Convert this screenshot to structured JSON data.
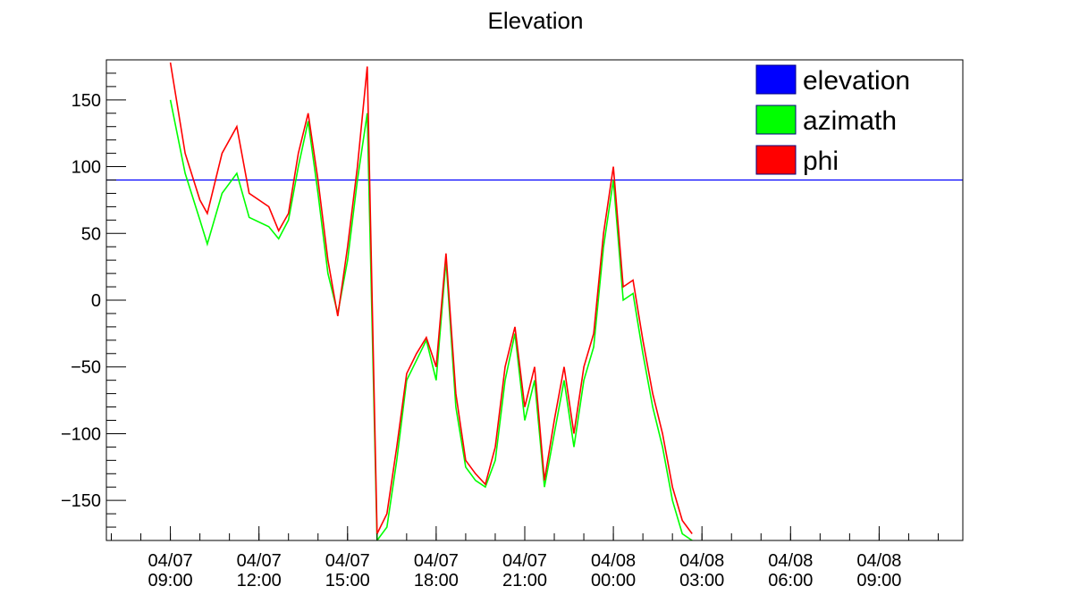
{
  "chart_data": {
    "type": "line",
    "title": "Elevation",
    "xlabel": "",
    "ylabel": "",
    "ylim": [
      -180,
      180
    ],
    "xlim": [
      "2023-04-07 06:50",
      "2023-04-08 11:50"
    ],
    "grid": false,
    "legend_position": "top-right",
    "y_ticks": [
      "150",
      "100",
      "50",
      "0",
      "−50",
      "−100",
      "−150"
    ],
    "y_tick_values": [
      150,
      100,
      50,
      0,
      -50,
      -100,
      -150
    ],
    "x_ticks": [
      {
        "date": "04/07",
        "time": "09:00",
        "value": "2023-04-07 09:00"
      },
      {
        "date": "04/07",
        "time": "12:00",
        "value": "2023-04-07 12:00"
      },
      {
        "date": "04/07",
        "time": "15:00",
        "value": "2023-04-07 15:00"
      },
      {
        "date": "04/07",
        "time": "18:00",
        "value": "2023-04-07 18:00"
      },
      {
        "date": "04/07",
        "time": "21:00",
        "value": "2023-04-07 21:00"
      },
      {
        "date": "04/08",
        "time": "00:00",
        "value": "2023-04-08 00:00"
      },
      {
        "date": "04/08",
        "time": "03:00",
        "value": "2023-04-08 03:00"
      },
      {
        "date": "04/08",
        "time": "06:00",
        "value": "2023-04-08 06:00"
      },
      {
        "date": "04/08",
        "time": "09:00",
        "value": "2023-04-08 09:00"
      }
    ],
    "series": [
      {
        "name": "elevation",
        "color": "#0000ff",
        "points": [
          [
            "2023-04-07 06:50",
            90
          ],
          [
            "2023-04-08 11:50",
            90
          ]
        ]
      },
      {
        "name": "azimath",
        "color": "#00ff00",
        "points": [
          [
            "2023-04-07 09:00",
            150
          ],
          [
            "2023-04-07 09:30",
            95
          ],
          [
            "2023-04-07 10:00",
            60
          ],
          [
            "2023-04-07 10:15",
            42
          ],
          [
            "2023-04-07 10:45",
            80
          ],
          [
            "2023-04-07 11:15",
            95
          ],
          [
            "2023-04-07 11:40",
            62
          ],
          [
            "2023-04-07 12:20",
            55
          ],
          [
            "2023-04-07 12:40",
            46
          ],
          [
            "2023-04-07 13:00",
            60
          ],
          [
            "2023-04-07 13:20",
            100
          ],
          [
            "2023-04-07 13:40",
            134
          ],
          [
            "2023-04-07 14:00",
            80
          ],
          [
            "2023-04-07 14:20",
            20
          ],
          [
            "2023-04-07 14:40",
            -10
          ],
          [
            "2023-04-07 15:00",
            30
          ],
          [
            "2023-04-07 15:20",
            90
          ],
          [
            "2023-04-07 15:40",
            140
          ],
          [
            "2023-04-07 16:00",
            -180
          ],
          [
            "2023-04-07 16:20",
            -170
          ],
          [
            "2023-04-07 16:40",
            -120
          ],
          [
            "2023-04-07 17:00",
            -60
          ],
          [
            "2023-04-07 17:20",
            -45
          ],
          [
            "2023-04-07 17:40",
            -30
          ],
          [
            "2023-04-07 18:00",
            -60
          ],
          [
            "2023-04-07 18:20",
            30
          ],
          [
            "2023-04-07 18:40",
            -80
          ],
          [
            "2023-04-07 19:00",
            -125
          ],
          [
            "2023-04-07 19:20",
            -135
          ],
          [
            "2023-04-07 19:40",
            -140
          ],
          [
            "2023-04-07 20:00",
            -120
          ],
          [
            "2023-04-07 20:20",
            -60
          ],
          [
            "2023-04-07 20:40",
            -25
          ],
          [
            "2023-04-07 21:00",
            -90
          ],
          [
            "2023-04-07 21:20",
            -60
          ],
          [
            "2023-04-07 21:40",
            -140
          ],
          [
            "2023-04-07 22:00",
            -100
          ],
          [
            "2023-04-07 22:20",
            -60
          ],
          [
            "2023-04-07 22:40",
            -110
          ],
          [
            "2023-04-07 23:00",
            -60
          ],
          [
            "2023-04-07 23:20",
            -35
          ],
          [
            "2023-04-07 23:40",
            40
          ],
          [
            "2023-04-08 00:00",
            90
          ],
          [
            "2023-04-08 00:20",
            0
          ],
          [
            "2023-04-08 00:40",
            5
          ],
          [
            "2023-04-08 01:00",
            -40
          ],
          [
            "2023-04-08 01:20",
            -80
          ],
          [
            "2023-04-08 01:40",
            -110
          ],
          [
            "2023-04-08 02:00",
            -150
          ],
          [
            "2023-04-08 02:20",
            -175
          ],
          [
            "2023-04-08 02:40",
            -180
          ]
        ]
      },
      {
        "name": "phi",
        "color": "#ff0000",
        "points": [
          [
            "2023-04-07 09:00",
            178
          ],
          [
            "2023-04-07 09:30",
            110
          ],
          [
            "2023-04-07 10:00",
            75
          ],
          [
            "2023-04-07 10:15",
            65
          ],
          [
            "2023-04-07 10:45",
            110
          ],
          [
            "2023-04-07 11:15",
            130
          ],
          [
            "2023-04-07 11:40",
            80
          ],
          [
            "2023-04-07 12:20",
            70
          ],
          [
            "2023-04-07 12:40",
            52
          ],
          [
            "2023-04-07 13:00",
            65
          ],
          [
            "2023-04-07 13:20",
            110
          ],
          [
            "2023-04-07 13:40",
            140
          ],
          [
            "2023-04-07 14:00",
            90
          ],
          [
            "2023-04-07 14:20",
            30
          ],
          [
            "2023-04-07 14:40",
            -12
          ],
          [
            "2023-04-07 15:00",
            40
          ],
          [
            "2023-04-07 15:20",
            100
          ],
          [
            "2023-04-07 15:40",
            175
          ],
          [
            "2023-04-07 16:00",
            -175
          ],
          [
            "2023-04-07 16:20",
            -160
          ],
          [
            "2023-04-07 16:40",
            -110
          ],
          [
            "2023-04-07 17:00",
            -55
          ],
          [
            "2023-04-07 17:20",
            -40
          ],
          [
            "2023-04-07 17:40",
            -28
          ],
          [
            "2023-04-07 18:00",
            -50
          ],
          [
            "2023-04-07 18:20",
            35
          ],
          [
            "2023-04-07 18:40",
            -70
          ],
          [
            "2023-04-07 19:00",
            -120
          ],
          [
            "2023-04-07 19:20",
            -130
          ],
          [
            "2023-04-07 19:40",
            -138
          ],
          [
            "2023-04-07 20:00",
            -110
          ],
          [
            "2023-04-07 20:20",
            -50
          ],
          [
            "2023-04-07 20:40",
            -20
          ],
          [
            "2023-04-07 21:00",
            -80
          ],
          [
            "2023-04-07 21:20",
            -50
          ],
          [
            "2023-04-07 21:40",
            -135
          ],
          [
            "2023-04-07 22:00",
            -90
          ],
          [
            "2023-04-07 22:20",
            -50
          ],
          [
            "2023-04-07 22:40",
            -100
          ],
          [
            "2023-04-07 23:00",
            -50
          ],
          [
            "2023-04-07 23:20",
            -25
          ],
          [
            "2023-04-07 23:40",
            50
          ],
          [
            "2023-04-08 00:00",
            100
          ],
          [
            "2023-04-08 00:20",
            10
          ],
          [
            "2023-04-08 00:40",
            15
          ],
          [
            "2023-04-08 01:00",
            -30
          ],
          [
            "2023-04-08 01:20",
            -70
          ],
          [
            "2023-04-08 01:40",
            -100
          ],
          [
            "2023-04-08 02:00",
            -140
          ],
          [
            "2023-04-08 02:20",
            -165
          ],
          [
            "2023-04-08 02:40",
            -175
          ]
        ]
      }
    ]
  }
}
